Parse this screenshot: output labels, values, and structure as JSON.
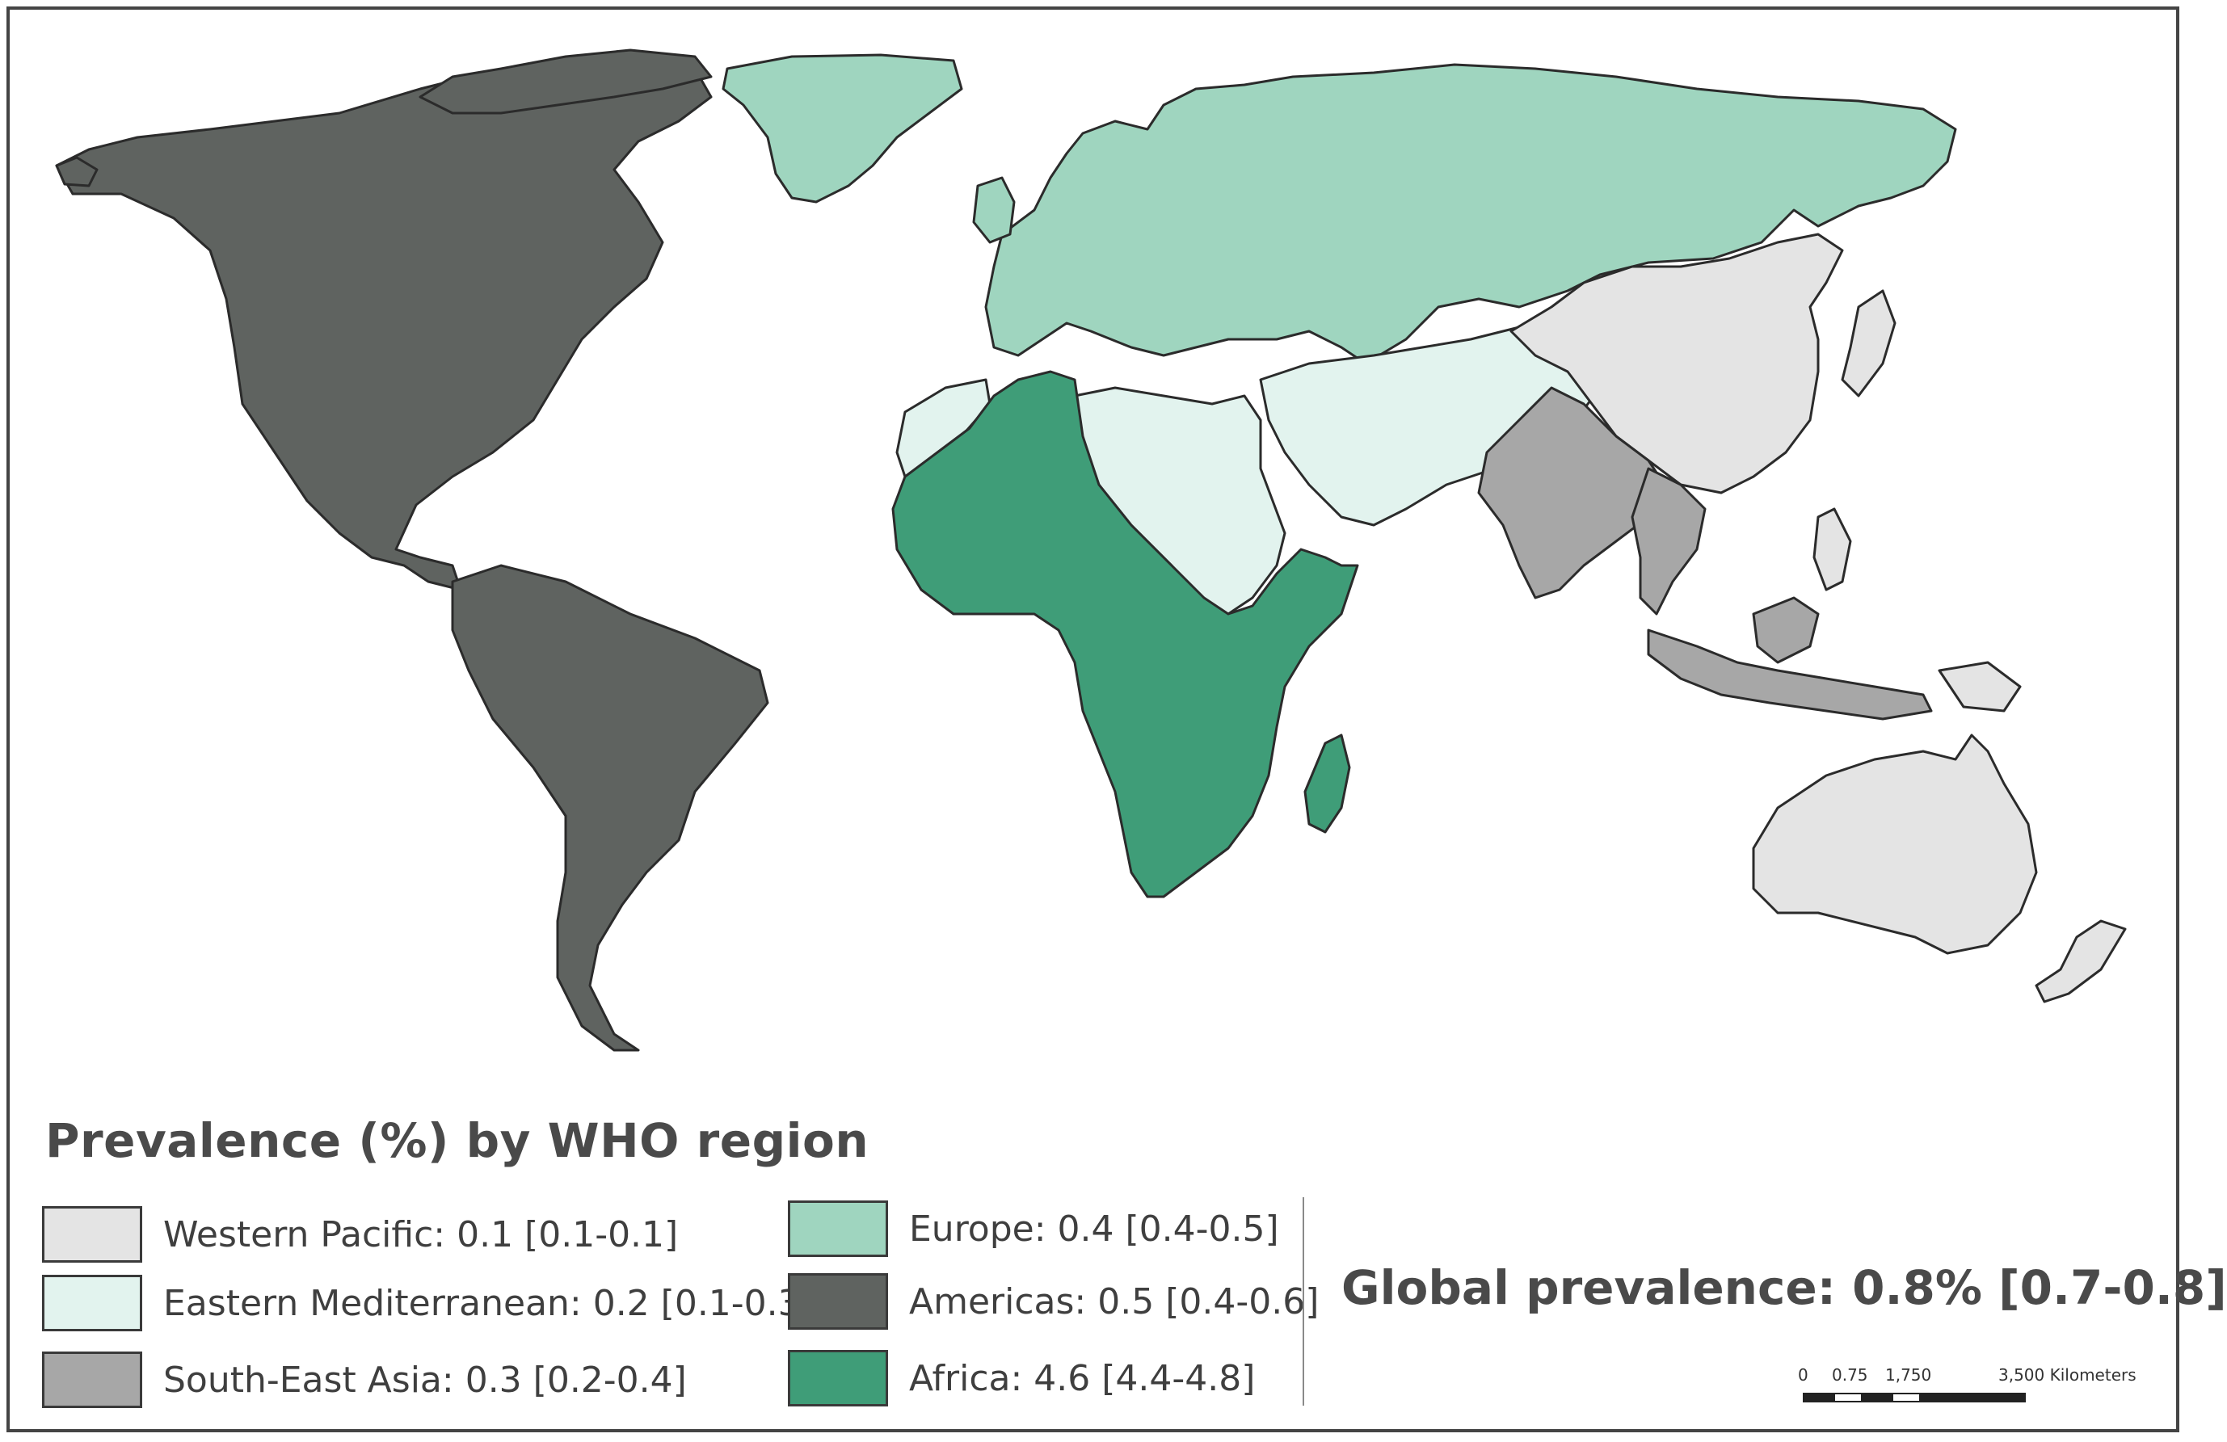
{
  "legend": {
    "title": "Prevalence (%) by WHO region",
    "items": [
      {
        "label": "Western Pacific: 0.1 [0.1-0.1]",
        "color": "#e4e4e4"
      },
      {
        "label": "Eastern Mediterranean: 0.2 [0.1-0.3]",
        "color": "#e2f3ee"
      },
      {
        "label": "South-East Asia: 0.3 [0.2-0.4]",
        "color": "#a7a7a7"
      },
      {
        "label": "Europe: 0.4 [0.4-0.5]",
        "color": "#9fd5bf"
      },
      {
        "label": "Americas: 0.5 [0.4-0.6]",
        "color": "#5f6360"
      },
      {
        "label": "Africa: 4.6 [4.4-4.8]",
        "color": "#3f9d78"
      }
    ]
  },
  "global_prevalence": "Global prevalence: 0.8% [0.7-0.8]",
  "scale_bar": {
    "ticks": [
      "0",
      "0.75",
      "1,750",
      "3,500 Kilometers"
    ]
  },
  "regions": {
    "western_pacific": {
      "value": 0.1,
      "color": "#e4e4e4"
    },
    "eastern_mediterranean": {
      "value": 0.2,
      "color": "#e2f3ee"
    },
    "south_east_asia": {
      "value": 0.3,
      "color": "#a7a7a7"
    },
    "europe": {
      "value": 0.4,
      "color": "#9fd5bf"
    },
    "americas": {
      "value": 0.5,
      "color": "#5f6360"
    },
    "africa": {
      "value": 4.6,
      "color": "#3f9d78"
    }
  }
}
